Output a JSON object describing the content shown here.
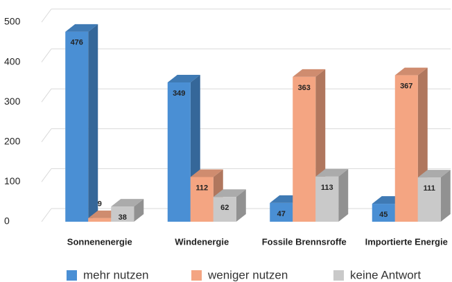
{
  "chart_data": {
    "type": "bar3d",
    "categories": [
      "Sonnenenergie",
      "Windenergie",
      "Fossile Brennsroffe",
      "Importierte Energie"
    ],
    "series": [
      {
        "name": "mehr nutzen",
        "color": "#4a8fd4",
        "values": [
          476,
          349,
          47,
          45
        ]
      },
      {
        "name": "weniger nutzen",
        "color": "#f4a582",
        "values": [
          9,
          112,
          363,
          367
        ]
      },
      {
        "name": "keine Antwort",
        "color": "#c9c9c9",
        "values": [
          38,
          62,
          113,
          111
        ]
      }
    ],
    "ylim": [
      0,
      500
    ],
    "yticks": [
      0,
      100,
      200,
      300,
      400,
      500
    ],
    "grid": true,
    "legend": "bottom"
  }
}
